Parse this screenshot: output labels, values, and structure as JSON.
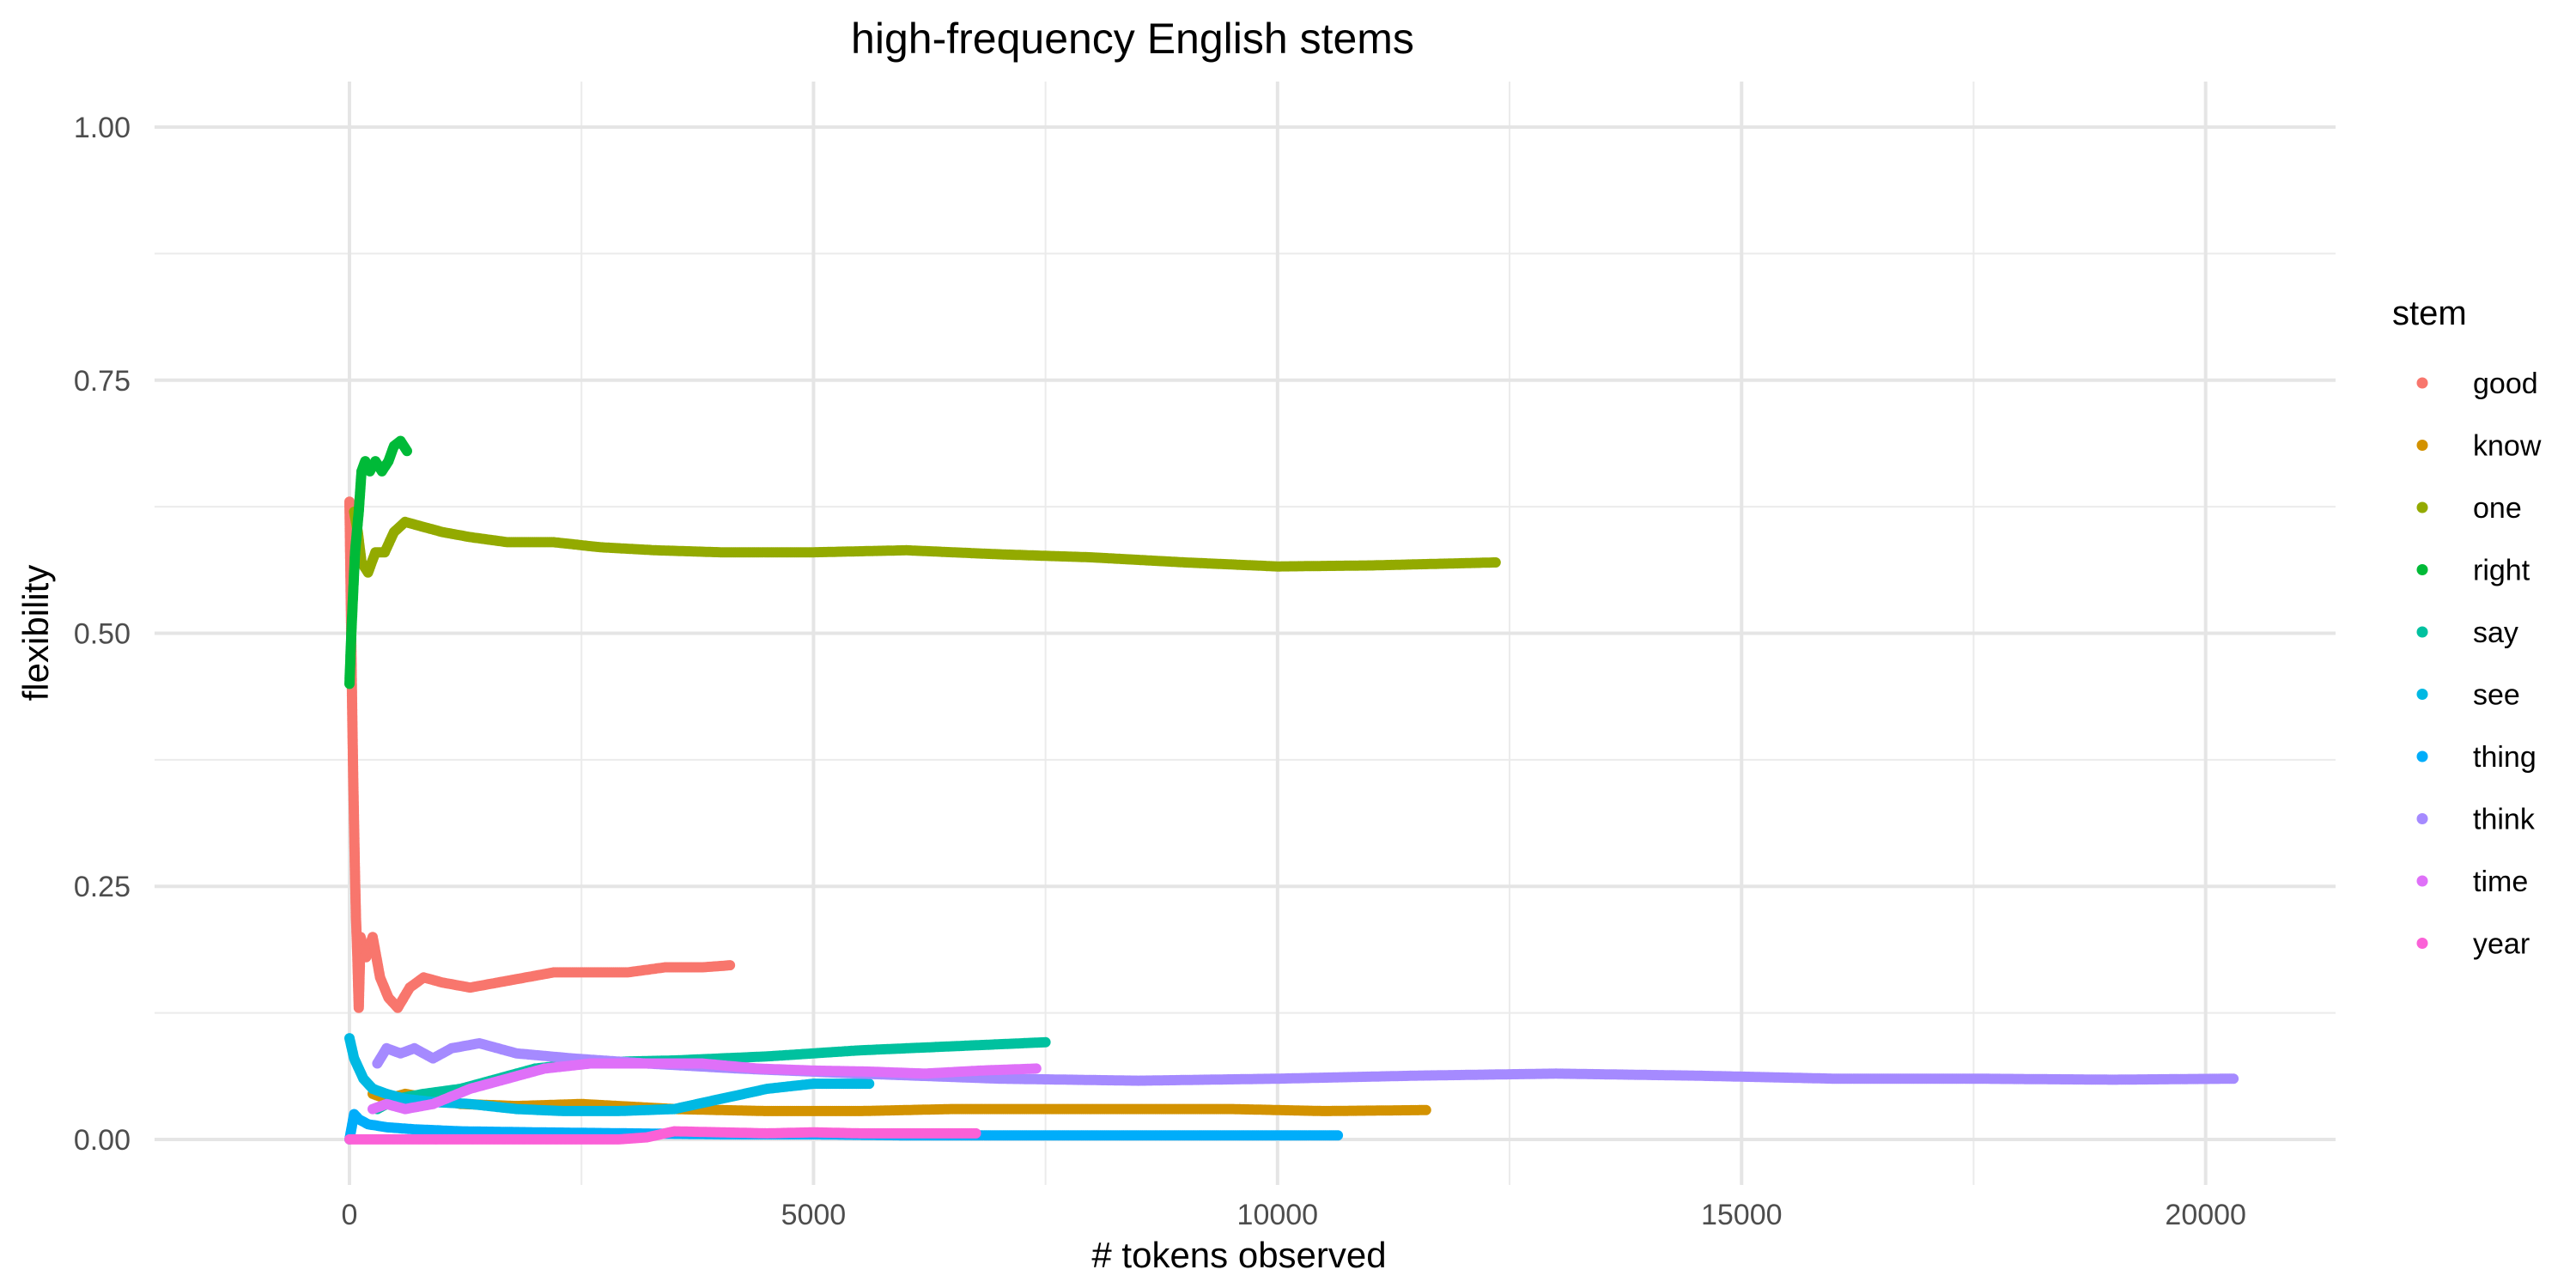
{
  "chart_data": {
    "type": "scatter",
    "title": "high-frequency English stems",
    "xlabel": "# tokens observed",
    "ylabel": "flexibility",
    "xlim": [
      -2100,
      21400
    ],
    "ylim": [
      -0.045,
      1.045
    ],
    "x_ticks": [
      0,
      5000,
      10000,
      15000,
      20000
    ],
    "x_tick_labels": [
      "0",
      "5000",
      "10000",
      "15000",
      "20000"
    ],
    "y_ticks": [
      0,
      0.25,
      0.5,
      0.75,
      1.0
    ],
    "y_tick_labels": [
      "0.00",
      "0.25",
      "0.50",
      "0.75",
      "1.00"
    ],
    "grid": true,
    "legend_title": "stem",
    "legend_position": "right",
    "series": [
      {
        "name": "good",
        "color": "#F8766D",
        "points": [
          [
            0,
            0.63
          ],
          [
            10,
            0.56
          ],
          [
            20,
            0.49
          ],
          [
            30,
            0.42
          ],
          [
            40,
            0.36
          ],
          [
            50,
            0.31
          ],
          [
            60,
            0.26
          ],
          [
            70,
            0.22
          ],
          [
            85,
            0.18
          ],
          [
            100,
            0.13
          ],
          [
            120,
            0.2
          ],
          [
            180,
            0.18
          ],
          [
            250,
            0.2
          ],
          [
            330,
            0.16
          ],
          [
            420,
            0.14
          ],
          [
            520,
            0.13
          ],
          [
            650,
            0.15
          ],
          [
            800,
            0.16
          ],
          [
            1000,
            0.155
          ],
          [
            1300,
            0.15
          ],
          [
            1600,
            0.155
          ],
          [
            1900,
            0.16
          ],
          [
            2200,
            0.165
          ],
          [
            2600,
            0.165
          ],
          [
            3000,
            0.165
          ],
          [
            3400,
            0.17
          ],
          [
            3800,
            0.17
          ],
          [
            4100,
            0.172
          ]
        ]
      },
      {
        "name": "know",
        "color": "#D39200",
        "points": [
          [
            250,
            0.045
          ],
          [
            400,
            0.04
          ],
          [
            600,
            0.045
          ],
          [
            800,
            0.042
          ],
          [
            1200,
            0.035
          ],
          [
            1800,
            0.033
          ],
          [
            2500,
            0.035
          ],
          [
            3500,
            0.03
          ],
          [
            4500,
            0.028
          ],
          [
            5500,
            0.028
          ],
          [
            6500,
            0.03
          ],
          [
            7500,
            0.03
          ],
          [
            8500,
            0.03
          ],
          [
            9500,
            0.03
          ],
          [
            10500,
            0.028
          ],
          [
            11600,
            0.029
          ]
        ]
      },
      {
        "name": "one",
        "color": "#93AA00",
        "points": [
          [
            50,
            0.62
          ],
          [
            90,
            0.6
          ],
          [
            130,
            0.57
          ],
          [
            200,
            0.56
          ],
          [
            280,
            0.58
          ],
          [
            380,
            0.58
          ],
          [
            480,
            0.6
          ],
          [
            600,
            0.61
          ],
          [
            800,
            0.605
          ],
          [
            1000,
            0.6
          ],
          [
            1300,
            0.595
          ],
          [
            1700,
            0.59
          ],
          [
            2200,
            0.59
          ],
          [
            2700,
            0.585
          ],
          [
            3300,
            0.582
          ],
          [
            4000,
            0.58
          ],
          [
            5000,
            0.58
          ],
          [
            6000,
            0.582
          ],
          [
            7000,
            0.578
          ],
          [
            8000,
            0.575
          ],
          [
            9000,
            0.57
          ],
          [
            10000,
            0.566
          ],
          [
            11000,
            0.567
          ],
          [
            12350,
            0.57
          ]
        ]
      },
      {
        "name": "right",
        "color": "#00BA38",
        "points": [
          [
            0,
            0.45
          ],
          [
            20,
            0.5
          ],
          [
            40,
            0.54
          ],
          [
            60,
            0.58
          ],
          [
            80,
            0.6
          ],
          [
            100,
            0.62
          ],
          [
            130,
            0.66
          ],
          [
            170,
            0.67
          ],
          [
            220,
            0.66
          ],
          [
            280,
            0.67
          ],
          [
            350,
            0.66
          ],
          [
            420,
            0.67
          ],
          [
            480,
            0.685
          ],
          [
            550,
            0.69
          ],
          [
            620,
            0.68
          ]
        ]
      },
      {
        "name": "say",
        "color": "#00C19F",
        "points": [
          [
            300,
            0.03
          ],
          [
            500,
            0.04
          ],
          [
            800,
            0.045
          ],
          [
            1200,
            0.05
          ],
          [
            1600,
            0.06
          ],
          [
            2000,
            0.07
          ],
          [
            2500,
            0.075
          ],
          [
            3000,
            0.077
          ],
          [
            3500,
            0.078
          ],
          [
            4000,
            0.08
          ],
          [
            4500,
            0.082
          ],
          [
            5000,
            0.085
          ],
          [
            5500,
            0.088
          ],
          [
            6000,
            0.09
          ],
          [
            6500,
            0.092
          ],
          [
            7000,
            0.094
          ],
          [
            7500,
            0.096
          ]
        ]
      },
      {
        "name": "see",
        "color": "#00B9E3",
        "points": [
          [
            0,
            0.1
          ],
          [
            50,
            0.08
          ],
          [
            100,
            0.07
          ],
          [
            150,
            0.06
          ],
          [
            250,
            0.05
          ],
          [
            400,
            0.045
          ],
          [
            600,
            0.04
          ],
          [
            900,
            0.037
          ],
          [
            1300,
            0.035
          ],
          [
            1800,
            0.03
          ],
          [
            2300,
            0.028
          ],
          [
            2900,
            0.028
          ],
          [
            3500,
            0.03
          ],
          [
            4000,
            0.04
          ],
          [
            4500,
            0.05
          ],
          [
            5000,
            0.055
          ],
          [
            5600,
            0.055
          ]
        ]
      },
      {
        "name": "thing",
        "color": "#00ADFA",
        "points": [
          [
            0,
            0.0
          ],
          [
            50,
            0.025
          ],
          [
            100,
            0.02
          ],
          [
            200,
            0.015
          ],
          [
            400,
            0.012
          ],
          [
            700,
            0.01
          ],
          [
            1200,
            0.008
          ],
          [
            2000,
            0.007
          ],
          [
            3000,
            0.006
          ],
          [
            4000,
            0.005
          ],
          [
            5000,
            0.005
          ],
          [
            6000,
            0.004
          ],
          [
            7000,
            0.004
          ],
          [
            8000,
            0.004
          ],
          [
            9000,
            0.004
          ],
          [
            10000,
            0.004
          ],
          [
            10650,
            0.004
          ]
        ]
      },
      {
        "name": "think",
        "color": "#A58AFF",
        "points": [
          [
            300,
            0.075
          ],
          [
            400,
            0.09
          ],
          [
            550,
            0.085
          ],
          [
            700,
            0.09
          ],
          [
            900,
            0.08
          ],
          [
            1100,
            0.09
          ],
          [
            1400,
            0.095
          ],
          [
            1800,
            0.085
          ],
          [
            2400,
            0.08
          ],
          [
            3200,
            0.075
          ],
          [
            4200,
            0.07
          ],
          [
            5500,
            0.065
          ],
          [
            7000,
            0.06
          ],
          [
            8500,
            0.058
          ],
          [
            10000,
            0.06
          ],
          [
            11500,
            0.063
          ],
          [
            13000,
            0.065
          ],
          [
            14500,
            0.063
          ],
          [
            16000,
            0.06
          ],
          [
            17500,
            0.06
          ],
          [
            19000,
            0.059
          ],
          [
            20300,
            0.06
          ]
        ]
      },
      {
        "name": "time",
        "color": "#DF70F8",
        "points": [
          [
            250,
            0.03
          ],
          [
            400,
            0.035
          ],
          [
            600,
            0.03
          ],
          [
            900,
            0.035
          ],
          [
            1300,
            0.05
          ],
          [
            1700,
            0.06
          ],
          [
            2100,
            0.07
          ],
          [
            2600,
            0.075
          ],
          [
            3200,
            0.075
          ],
          [
            3800,
            0.075
          ],
          [
            4400,
            0.07
          ],
          [
            5000,
            0.068
          ],
          [
            5600,
            0.067
          ],
          [
            6200,
            0.065
          ],
          [
            6800,
            0.068
          ],
          [
            7400,
            0.07
          ]
        ]
      },
      {
        "name": "year",
        "color": "#FB61D7",
        "points": [
          [
            0,
            0.0
          ],
          [
            400,
            0.0
          ],
          [
            900,
            0.0
          ],
          [
            1500,
            0.0
          ],
          [
            2200,
            0.0
          ],
          [
            2900,
            0.0
          ],
          [
            3200,
            0.002
          ],
          [
            3500,
            0.008
          ],
          [
            4000,
            0.007
          ],
          [
            4500,
            0.006
          ],
          [
            5000,
            0.007
          ],
          [
            5500,
            0.006
          ],
          [
            6000,
            0.006
          ],
          [
            6500,
            0.006
          ],
          [
            6750,
            0.006
          ]
        ]
      }
    ]
  }
}
